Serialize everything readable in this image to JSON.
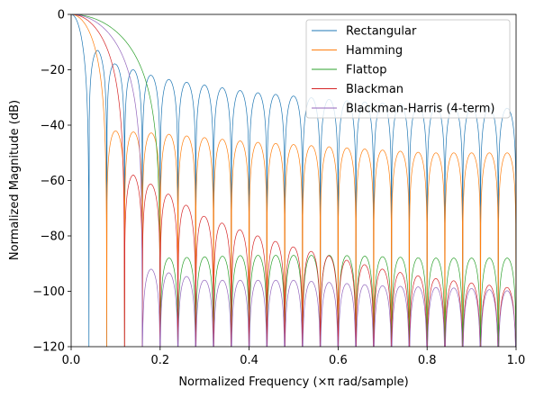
{
  "chart_data": {
    "type": "line",
    "title": "",
    "xlabel": "Normalized Frequency (×π rad/sample)",
    "ylabel": "Normalized Magnitude (dB)",
    "xlim": [
      0.0,
      1.0
    ],
    "ylim": [
      -120,
      0
    ],
    "x_ticks": [
      "0.0",
      "0.2",
      "0.4",
      "0.6",
      "0.8",
      "1.0"
    ],
    "y_ticks": [
      "0",
      "−20",
      "−40",
      "−60",
      "−80",
      "−100",
      "−120"
    ],
    "grid": false,
    "legend_position": "top-right",
    "series": [
      {
        "name": "Rectangular",
        "color": "#1f77b4",
        "main_lobe_null": 0.04,
        "null_spacing": 0.04,
        "first_sidelobe_db": -13,
        "sidelobe_peaks": [
          [
            0.06,
            -13
          ],
          [
            0.1,
            -18
          ],
          [
            0.2,
            -23
          ],
          [
            0.4,
            -28
          ],
          [
            0.6,
            -31
          ],
          [
            0.8,
            -33
          ],
          [
            1.0,
            -34
          ]
        ]
      },
      {
        "name": "Hamming",
        "color": "#ff7f0e",
        "main_lobe_null": 0.08,
        "null_spacing": 0.04,
        "first_sidelobe_db": -42,
        "sidelobe_peaks": [
          [
            0.09,
            -42
          ],
          [
            0.2,
            -43
          ],
          [
            0.4,
            -46
          ],
          [
            0.6,
            -48
          ],
          [
            0.8,
            -50
          ],
          [
            1.0,
            -50
          ]
        ]
      },
      {
        "name": "Flattop",
        "color": "#2ca02c",
        "main_lobe_null": 0.2,
        "null_spacing": 0.04,
        "first_sidelobe_db": -88,
        "sidelobe_peaks": [
          [
            0.22,
            -88
          ],
          [
            0.4,
            -87
          ],
          [
            0.6,
            -87
          ],
          [
            0.8,
            -88
          ],
          [
            1.0,
            -88
          ]
        ]
      },
      {
        "name": "Blackman",
        "color": "#d62728",
        "main_lobe_null": 0.12,
        "null_spacing": 0.04,
        "first_sidelobe_db": -58,
        "sidelobe_peaks": [
          [
            0.14,
            -58
          ],
          [
            0.2,
            -63
          ],
          [
            0.3,
            -73
          ],
          [
            0.4,
            -79
          ],
          [
            0.5,
            -84
          ],
          [
            0.6,
            -88
          ],
          [
            0.7,
            -92
          ],
          [
            0.8,
            -95
          ],
          [
            0.9,
            -97
          ],
          [
            1.0,
            -99
          ]
        ]
      },
      {
        "name": "Blackman-Harris (4-term)",
        "color": "#9467bd",
        "main_lobe_null": 0.16,
        "null_spacing": 0.04,
        "first_sidelobe_db": -92,
        "sidelobe_peaks": [
          [
            0.18,
            -92
          ],
          [
            0.3,
            -96
          ],
          [
            0.5,
            -96
          ],
          [
            0.7,
            -98
          ],
          [
            0.9,
            -99
          ],
          [
            1.0,
            -100
          ]
        ]
      }
    ]
  }
}
